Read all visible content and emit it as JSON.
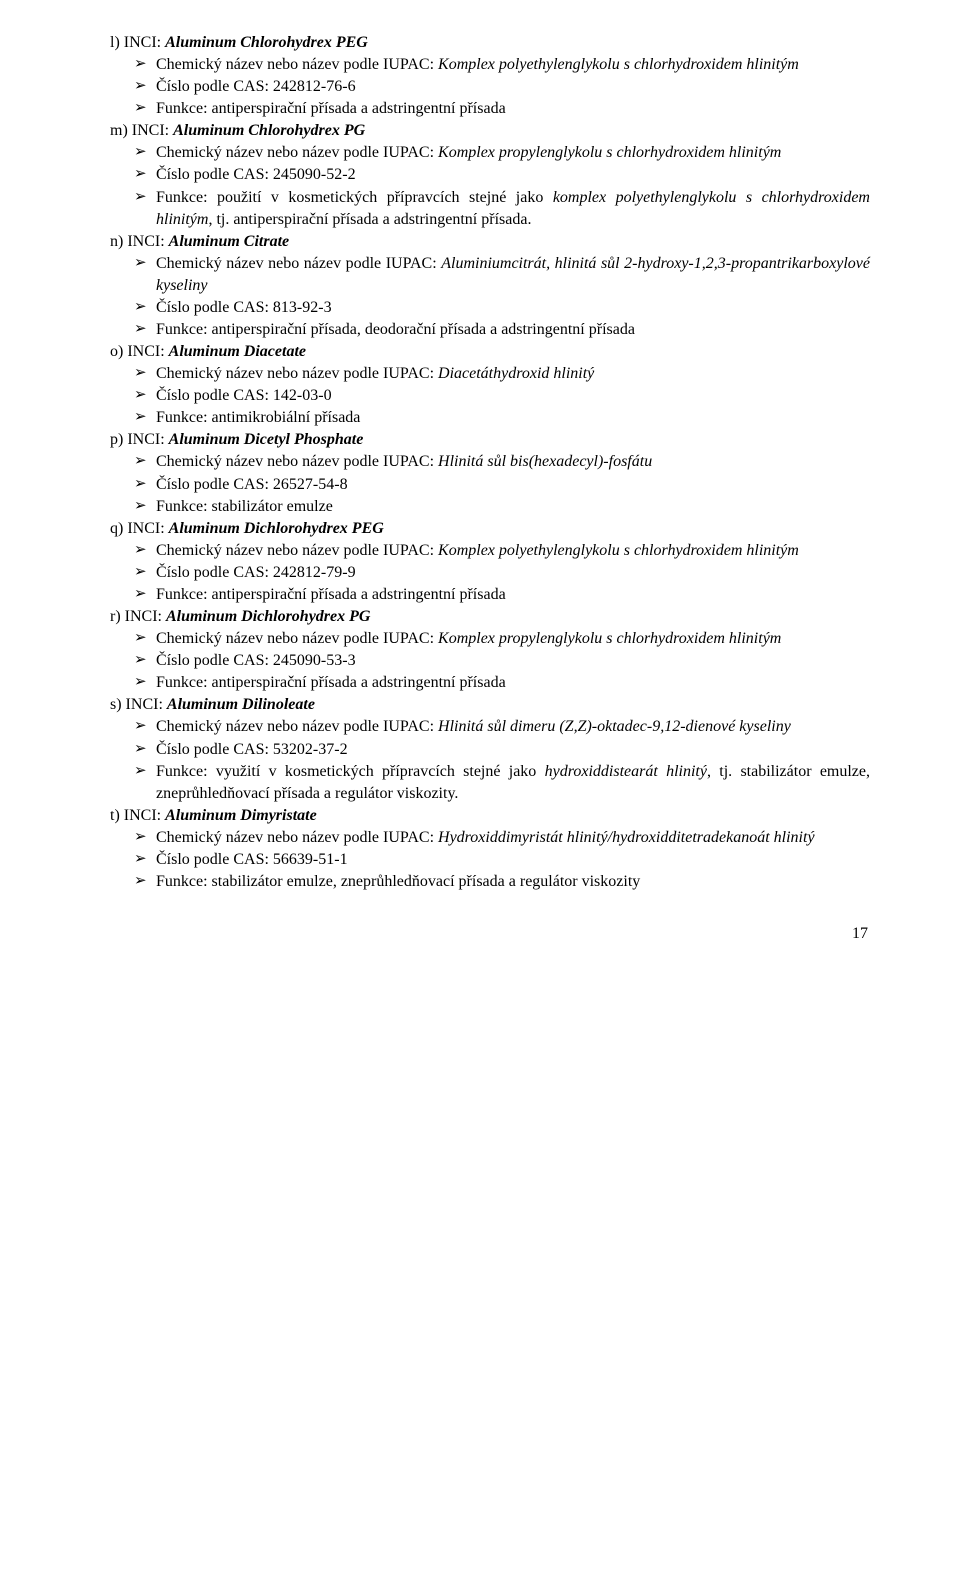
{
  "entries": {
    "l": {
      "header_prefix": "l) INCI: ",
      "inci": "Aluminum Chlorohydrex PEG",
      "b0_label": "Chemický název nebo název podle IUPAC: ",
      "b0_value": "Komplex polyethylenglykolu s chlorhydroxidem hlinitým",
      "b1": "Číslo podle CAS: 242812-76-6",
      "b2": "Funkce: antiperspirační přísada a adstringentní přísada"
    },
    "m": {
      "header_prefix": "m) INCI: ",
      "inci": "Aluminum Chlorohydrex PG",
      "b0_label": "Chemický název nebo název podle IUPAC: ",
      "b0_value": "Komplex propylenglykolu s chlorhydroxidem hlinitým",
      "b1": "Číslo podle CAS: 245090-52-2",
      "b2a": "Funkce: použití v kosmetických přípravcích stejné jako ",
      "b2b": "komplex polyethylenglykolu s chlorhydroxidem hlinitým",
      "b2c": ", tj. antiperspirační přísada a adstringentní přísada."
    },
    "n": {
      "header_prefix": "n) INCI: ",
      "inci": "Aluminum Citrate",
      "b0_label": "Chemický název nebo název podle IUPAC: ",
      "b0_value": "Aluminiumcitrát, hlinitá sůl 2-hydroxy-1,2,3-propantrikarboxylové kyseliny",
      "b1": "Číslo podle CAS: 813-92-3",
      "b2": "Funkce: antiperspirační přísada, deodorační přísada a adstringentní přísada"
    },
    "o": {
      "header_prefix": "o) INCI: ",
      "inci": "Aluminum Diacetate",
      "b0_label": "Chemický název nebo název podle IUPAC: ",
      "b0_value": "Diacetáthydroxid hlinitý",
      "b1": "Číslo podle CAS: 142-03-0",
      "b2": "Funkce: antimikrobiální přísada"
    },
    "p": {
      "header_prefix": "p) INCI: ",
      "inci": "Aluminum Dicetyl Phosphate",
      "b0_label": "Chemický název nebo název podle IUPAC: ",
      "b0_value": "Hlinitá sůl bis(hexadecyl)-fosfátu",
      "b1": "Číslo podle CAS: 26527-54-8",
      "b2": "Funkce: stabilizátor emulze"
    },
    "q": {
      "header_prefix": "q) INCI: ",
      "inci": "Aluminum Dichlorohydrex PEG",
      "b0_label": "Chemický název nebo název podle IUPAC: ",
      "b0_value": "Komplex polyethylenglykolu s chlorhydroxidem hlinitým",
      "b1": "Číslo podle CAS: 242812-79-9",
      "b2": "Funkce: antiperspirační přísada a adstringentní přísada"
    },
    "r": {
      "header_prefix": "r) INCI: ",
      "inci": "Aluminum Dichlorohydrex PG",
      "b0_label": "Chemický název nebo název podle IUPAC: ",
      "b0_value": "Komplex propylenglykolu s chlorhydroxidem hlinitým",
      "b1": "Číslo podle CAS: 245090-53-3",
      "b2": "Funkce: antiperspirační přísada a adstringentní přísada"
    },
    "s": {
      "header_prefix": "s) INCI: ",
      "inci": "Aluminum Dilinoleate",
      "b0_label": "Chemický název nebo název podle IUPAC: ",
      "b0_value": "Hlinitá sůl dimeru (Z,Z)-oktadec-9,12-dienové kyseliny",
      "b1": "Číslo podle CAS: 53202-37-2",
      "b2a": "Funkce: využití v kosmetických přípravcích stejné jako ",
      "b2b": "hydroxiddistearát hlinitý",
      "b2c": ", tj. stabilizátor emulze, zneprůhledňovací přísada a regulátor viskozity."
    },
    "t": {
      "header_prefix": "t) INCI: ",
      "inci": "Aluminum Dimyristate",
      "b0_label": "Chemický název nebo název podle IUPAC: ",
      "b0_value": "Hydroxiddimyristát hlinitý/hydroxidditetradekanoát hlinitý",
      "b1": "Číslo podle CAS: 56639-51-1",
      "b2": "Funkce: stabilizátor emulze, zneprůhledňovací přísada a regulátor viskozity"
    }
  },
  "page_number": "17"
}
